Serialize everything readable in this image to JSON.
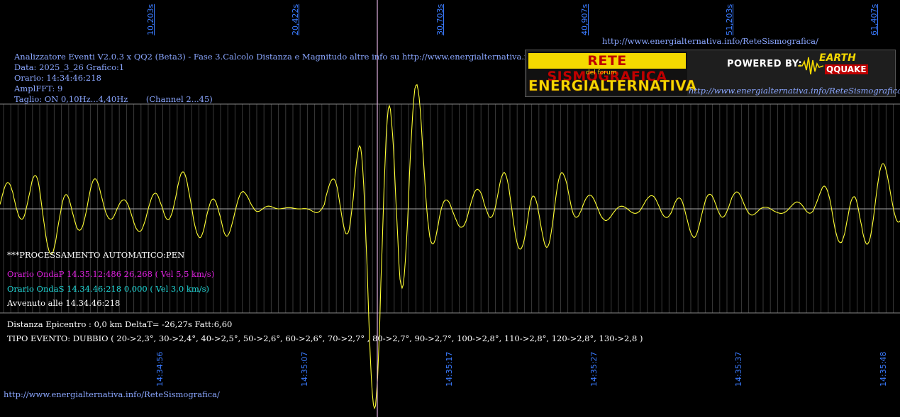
{
  "header": {
    "title_line": "Analizzatore Eventi V2.0.3 x QQ2 (Beta3) - Fase 3.Calcolo Distanza e Magnitudo altre info su http://www.energialternativa.info/ReteSism",
    "data_line": "Data: 2025_3_26 Grafico:1",
    "orario_line": "Orario: 14:34:46:218",
    "ampl_line": "AmplFFT: 9",
    "taglio_line": "Taglio: ON 0,10Hz...4,40Hz       (Channel 2...45)"
  },
  "top_url": "http://www.energialternativa.info/ReteSismografica/",
  "bottom_url": "http://www.energialternativa.info/ReteSismografica/",
  "banner": {
    "rete": "RETE SISMOGRAFICA",
    "forum": "del forum",
    "energ": "ENERGIALTERNATIVA",
    "powered": "POWERED BY:",
    "earth": "EARTH",
    "qquake": "QQUAKE",
    "url": "http://www.energialternativa.info/ReteSismografica"
  },
  "top_time_labels": [
    "10,203s",
    "20,422s",
    "30,703s",
    "40,907s",
    "51,203s",
    "61,407s"
  ],
  "bottom_time_labels": [
    "14:34:56",
    "14:35:07",
    "14:35:17",
    "14:35:27",
    "14:35:37",
    "14:35:48"
  ],
  "processing": {
    "status": "***PROCESSAMENTO AUTOMATICO:PEN",
    "onda_p": "Orario OndaP 14.35.12:486  26,268 ( Vel 5,5 km/s)",
    "onda_s": "Orario OndaS 14.34.46:218  0,000 ( Vel 3,0 km/s)",
    "avvenuto": "Avvenuto alle 14.34.46:218"
  },
  "results": {
    "distanza": "Distanza Epicentro : 0,0 km DeltaT= -26,27s  Fatt:6,60",
    "tipo": "TIPO EVENTO: DUBBIO ( 20->2,3°, 30->2,4°, 40->2,5°, 50->2,6°, 60->2,6°, 70->2,7° , 80->2,7°, 90->2,7°, 100->2,8°, 110->2,8°, 120->2,8°, 130->2,8 )"
  },
  "colors": {
    "trace": "#ffff33",
    "onda_p": "#e020e0",
    "onda_s": "#20d8d8",
    "event_line": "#e0b0e0",
    "time_label": "#3a7bff",
    "header_text": "#8aa6ff",
    "grid": "#6e6e6e"
  }
}
